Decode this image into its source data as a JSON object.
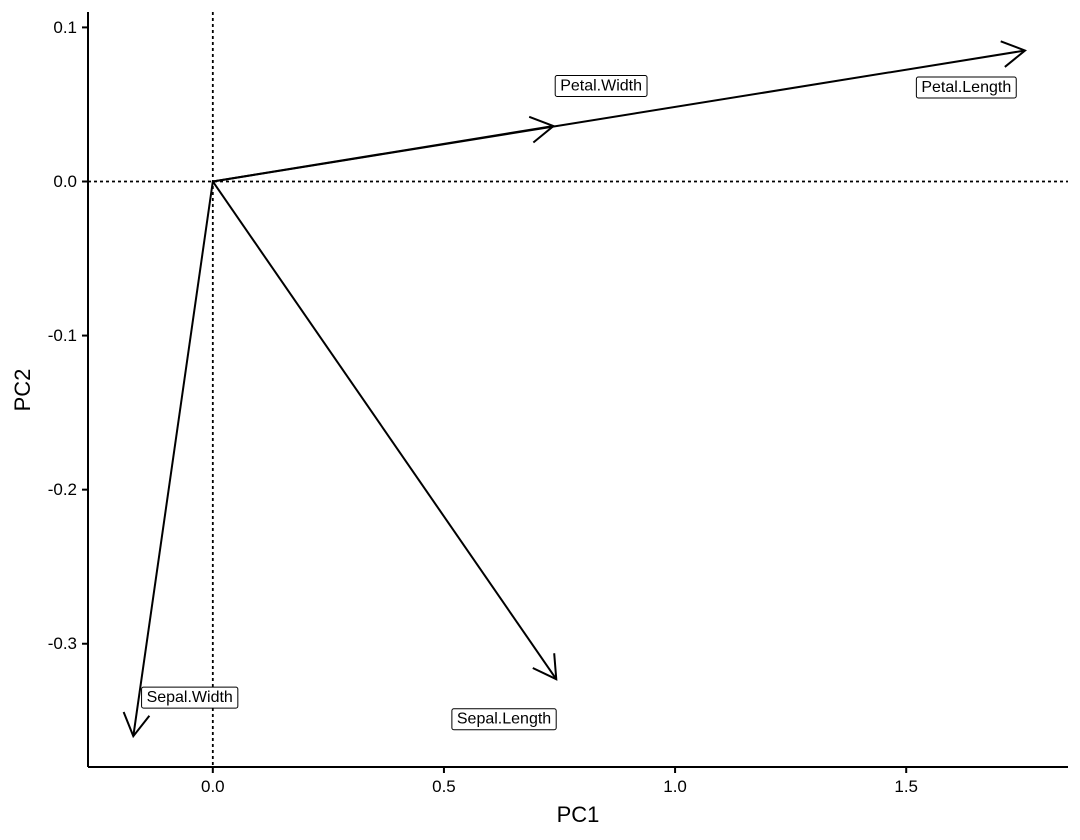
{
  "chart_data": {
    "type": "scatter",
    "subtype": "pca-biplot-vectors",
    "title": "",
    "xlabel": "PC1",
    "ylabel": "PC2",
    "xlim": [
      -0.27,
      1.85
    ],
    "ylim": [
      -0.38,
      0.11
    ],
    "x_ticks": [
      0.0,
      0.5,
      1.0,
      1.5
    ],
    "x_tick_labels": [
      "0.0",
      "0.5",
      "1.0",
      "1.5"
    ],
    "y_ticks": [
      0.1,
      0.0,
      -0.1,
      -0.2,
      -0.3
    ],
    "y_tick_labels": [
      "0.1",
      "0.0",
      "-0.1",
      "-0.2",
      "-0.3"
    ],
    "reference_lines": {
      "x": 0,
      "y": 0,
      "style": "dotted"
    },
    "grid": false,
    "vectors": [
      {
        "name": "Petal.Length",
        "x": 1.757,
        "y": 0.085,
        "label_x": 1.63,
        "label_y": 0.061
      },
      {
        "name": "Petal.Width",
        "x": 0.737,
        "y": 0.036,
        "label_x": 0.84,
        "label_y": 0.062
      },
      {
        "name": "Sepal.Length",
        "x": 0.743,
        "y": -0.323,
        "label_x": 0.63,
        "label_y": -0.349
      },
      {
        "name": "Sepal.Width",
        "x": -0.172,
        "y": -0.36,
        "label_x": -0.05,
        "label_y": -0.335
      }
    ]
  }
}
